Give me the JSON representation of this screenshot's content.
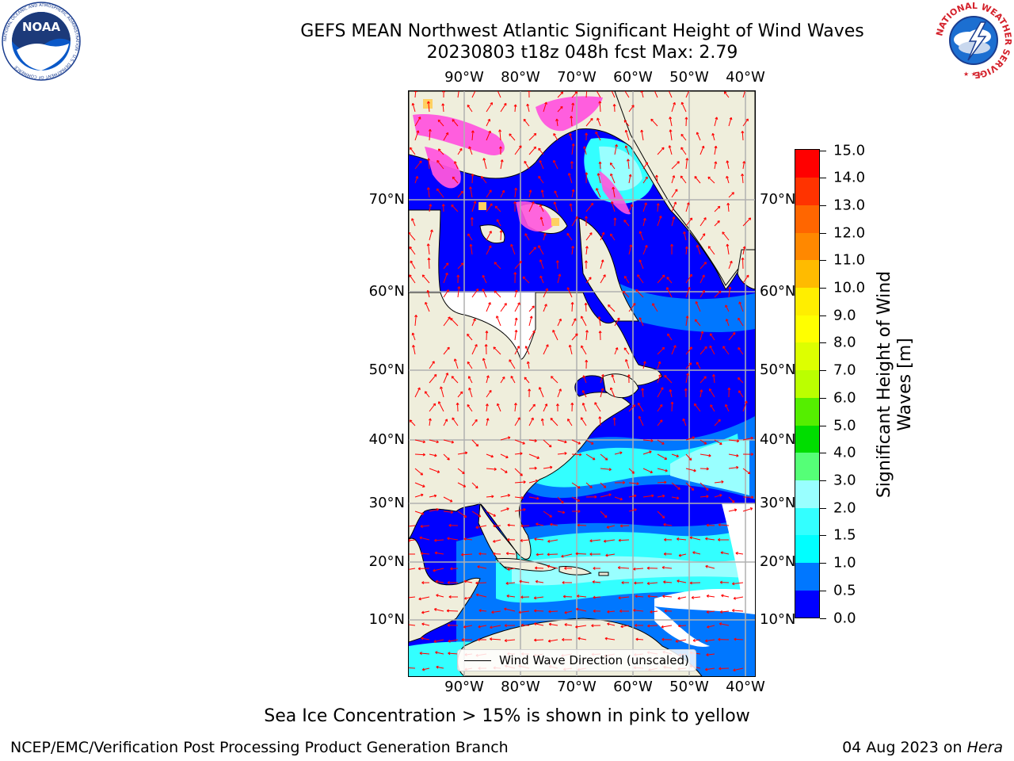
{
  "title": {
    "line1": "GEFS MEAN Northwest Atlantic Significant Height of Wind Waves",
    "line2": "20230803 t18z 048h fcst   Max: 2.79"
  },
  "map": {
    "lon_labels": [
      "90°W",
      "80°W",
      "70°W",
      "60°W",
      "50°W",
      "40°W"
    ],
    "lat_labels": [
      "70°N",
      "60°N",
      "50°N",
      "40°N",
      "30°N",
      "20°N",
      "10°N"
    ],
    "legend_label": "Wind Wave Direction (unscaled)",
    "colors": {
      "land": "#efeedc",
      "grid": "#b0b0b0",
      "arrow": "#ff0000",
      "no_data": "#ffffff",
      "ice_pink": "#ff55dd",
      "ice_yellow": "#ffd060"
    }
  },
  "colorbar": {
    "label": "Significant Height of Wind Waves [m]",
    "ticks": [
      "0.0",
      "0.5",
      "1.0",
      "1.5",
      "2.0",
      "3.0",
      "4.0",
      "5.0",
      "6.0",
      "7.0",
      "8.0",
      "9.0",
      "10.0",
      "11.0",
      "12.0",
      "13.0",
      "14.0",
      "15.0"
    ],
    "colors": [
      "#0000ff",
      "#0077ff",
      "#00ffff",
      "#33ffff",
      "#99ffff",
      "#55ff77",
      "#00dd00",
      "#55ee00",
      "#bbff00",
      "#ddff00",
      "#ffff00",
      "#ffee00",
      "#ffbb00",
      "#ff8800",
      "#ff6600",
      "#ff3300",
      "#ff0000"
    ]
  },
  "footer": {
    "sea_ice_note": "Sea Ice Concentration > 15% is shown in pink to yellow",
    "left": "NCEP/EMC/Verification Post Processing Product Generation Branch",
    "right_date": "04 Aug 2023 on ",
    "right_host": "Hera"
  },
  "logos": {
    "noaa_text": "NOAA",
    "noaa_ring": "NATIONAL OCEANIC AND ATMOSPHERIC ADMINISTRATION · U.S. DEPARTMENT OF COMMERCE",
    "nws_ring": "NATIONAL WEATHER SERVICE"
  }
}
